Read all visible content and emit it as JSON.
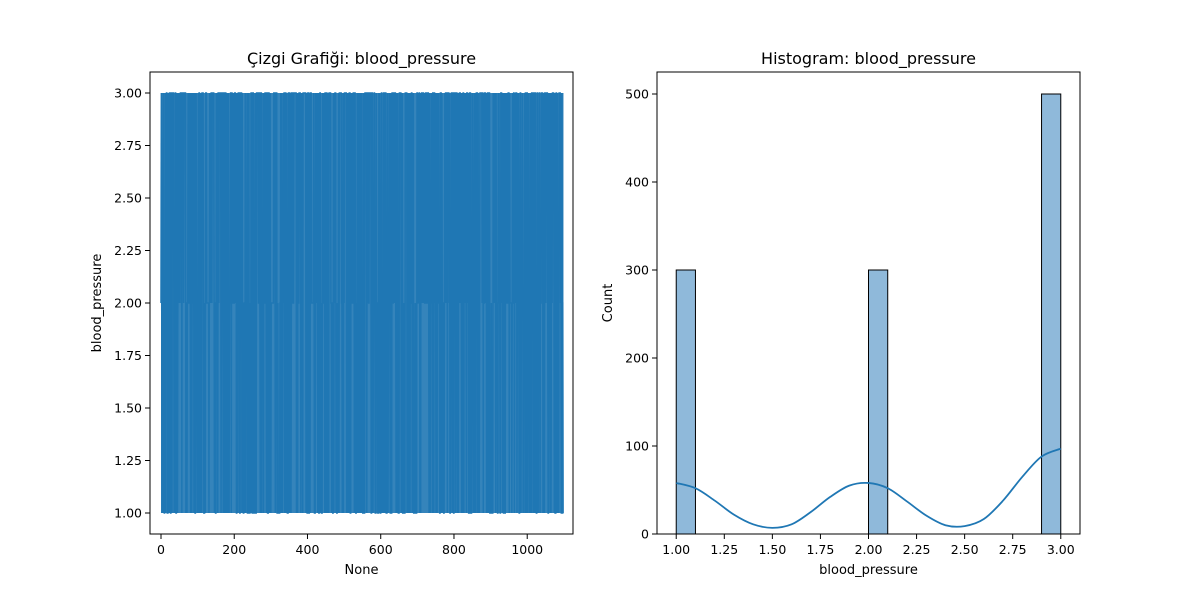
{
  "chart_data": [
    {
      "type": "line",
      "title": "Çizgi Grafiği: blood_pressure",
      "xlabel": "None",
      "ylabel": "blood_pressure",
      "xlim": [
        -30,
        1125
      ],
      "ylim": [
        0.9,
        3.1
      ],
      "x_ticks": [
        0,
        200,
        400,
        600,
        800,
        1000
      ],
      "y_ticks": [
        1.0,
        1.25,
        1.5,
        1.75,
        2.0,
        2.25,
        2.5,
        2.75,
        3.0
      ],
      "series": [
        {
          "points": 1100,
          "x_range": [
            0,
            1099
          ],
          "levels": [
            1,
            2,
            3
          ],
          "dominant_range": [
            1,
            3
          ]
        }
      ],
      "color": "#1f77b4",
      "grid": false
    },
    {
      "type": "bar",
      "title": "Histogram: blood_pressure",
      "xlabel": "blood_pressure",
      "ylabel": "Count",
      "xlim": [
        0.9,
        3.1
      ],
      "ylim": [
        0,
        525
      ],
      "x_ticks": [
        1.0,
        1.25,
        1.5,
        1.75,
        2.0,
        2.25,
        2.5,
        2.75,
        3.0
      ],
      "y_ticks": [
        0,
        100,
        200,
        300,
        400,
        500
      ],
      "bins": [
        {
          "x0": 1.0,
          "x1": 1.1,
          "count": 300
        },
        {
          "x0": 1.9,
          "x1": 2.0,
          "count": 0
        },
        {
          "x0": 2.0,
          "x1": 2.1,
          "count": 300
        },
        {
          "x0": 2.9,
          "x1": 3.0,
          "count": 500
        }
      ],
      "kde": {
        "x": [
          1.0,
          1.1,
          1.2,
          1.3,
          1.4,
          1.5,
          1.6,
          1.7,
          1.8,
          1.9,
          2.0,
          2.1,
          2.2,
          2.3,
          2.4,
          2.5,
          2.6,
          2.7,
          2.8,
          2.9,
          3.0
        ],
        "y": [
          58,
          52,
          38,
          22,
          11,
          7,
          11,
          25,
          42,
          55,
          58,
          52,
          37,
          21,
          10,
          9,
          17,
          38,
          65,
          88,
          97
        ]
      },
      "bar_color": "#8fb9da",
      "line_color": "#1f77b4",
      "grid": false
    }
  ]
}
